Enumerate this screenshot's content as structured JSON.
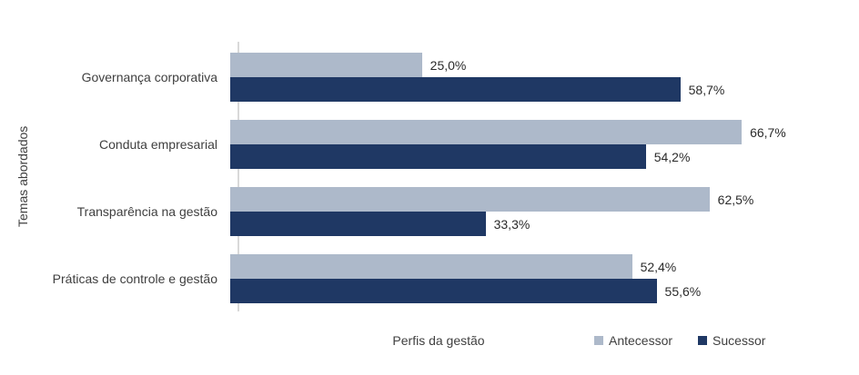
{
  "chart_data": {
    "type": "bar",
    "orientation": "horizontal",
    "title": "",
    "xlabel": "Perfis da gestão",
    "ylabel": "Temas abordados",
    "categories": [
      "Governança corporativa",
      "Conduta empresarial",
      "Transparência na gestão",
      "Práticas de controle e gestão"
    ],
    "series": [
      {
        "name": "Antecessor",
        "color": "#ADB9CA",
        "values": [
          25.0,
          66.7,
          62.5,
          52.4
        ],
        "labels": [
          "25,0%",
          "66,7%",
          "62,5%",
          "52,4%"
        ]
      },
      {
        "name": "Sucessor",
        "color": "#1F3864",
        "values": [
          58.7,
          54.2,
          33.3,
          55.6
        ],
        "labels": [
          "58,7%",
          "54,2%",
          "33,3%",
          "55,6%"
        ]
      }
    ],
    "xlim": [
      0,
      82
    ],
    "grid": false,
    "legend_position": "bottom-right",
    "axis_line_color": "#D9D9D9"
  }
}
